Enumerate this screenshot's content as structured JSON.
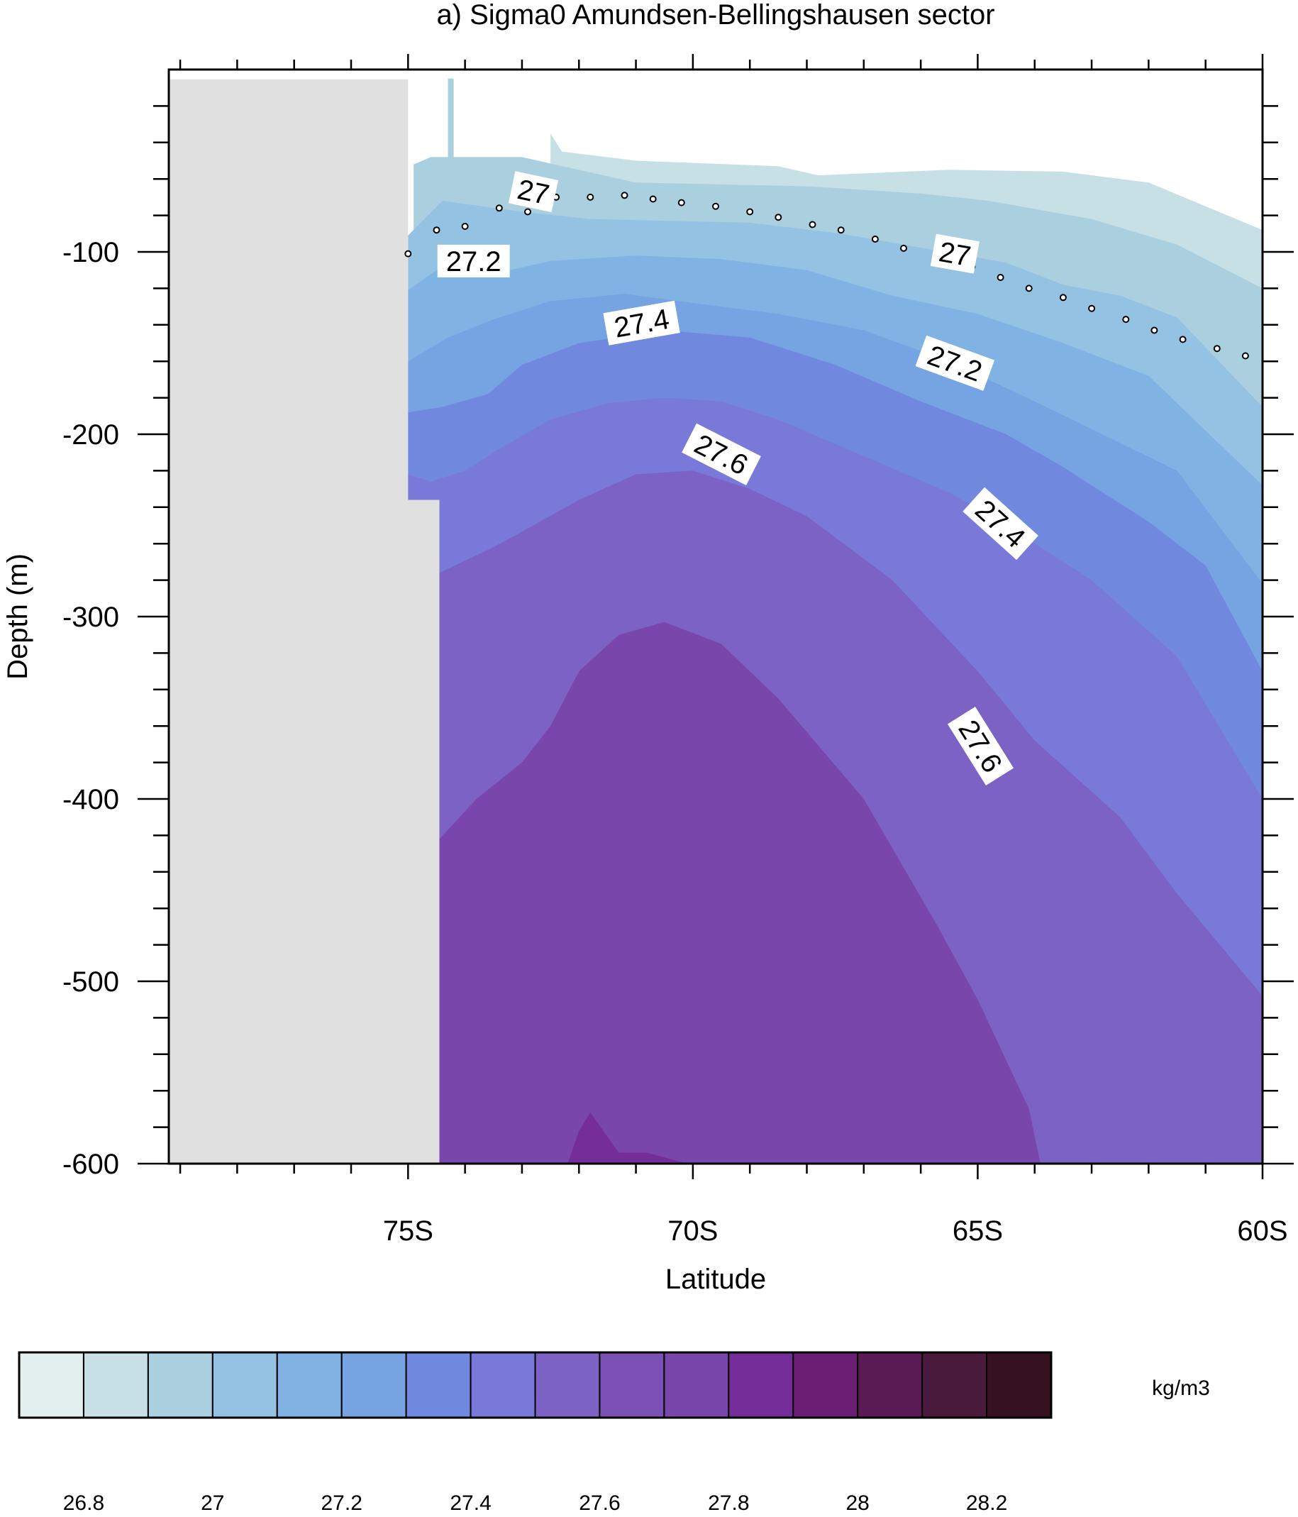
{
  "chart_data": {
    "type": "heatmap",
    "title": "a) Sigma0 Amundsen-Bellingshausen sector",
    "xlabel": "Latitude",
    "ylabel": "Depth (m)",
    "xlim": [
      -79.2,
      -60
    ],
    "ylim": [
      -600,
      0
    ],
    "x_ticks": [
      {
        "value": -75,
        "label": "75S"
      },
      {
        "value": -70,
        "label": "70S"
      },
      {
        "value": -65,
        "label": "65S"
      },
      {
        "value": -60,
        "label": "60S"
      }
    ],
    "y_ticks": [
      {
        "value": -100,
        "label": "-100"
      },
      {
        "value": -200,
        "label": "-200"
      },
      {
        "value": -300,
        "label": "-300"
      },
      {
        "value": -400,
        "label": "-400"
      },
      {
        "value": -500,
        "label": "-500"
      },
      {
        "value": -600,
        "label": "-600"
      }
    ],
    "fill_bands": [
      {
        "min": 26.9,
        "max": 27.0,
        "color": "#c7e0e6",
        "boundary": [
          [
            -72.5,
            -5
          ],
          [
            -72.5,
            -35
          ],
          [
            -72.3,
            -45
          ],
          [
            -71,
            -50
          ],
          [
            -68.5,
            -53
          ],
          [
            -67.8,
            -58
          ],
          [
            -65.5,
            -55
          ],
          [
            -63.5,
            -56
          ],
          [
            -62,
            -62
          ],
          [
            -60,
            -88
          ]
        ]
      },
      {
        "min": 27.0,
        "max": 27.1,
        "color": "#aad0e0",
        "boundary": [
          [
            -74.9,
            -5
          ],
          [
            -74.9,
            -52
          ],
          [
            -74.2,
            -52
          ],
          [
            -74.2,
            -5
          ],
          [
            -74.3,
            -5
          ]
        ]
      },
      {
        "min": 27.0,
        "max": 27.1,
        "color": "#aad0e0",
        "boundary": [
          [
            -74.9,
            -52
          ],
          [
            -74.6,
            -48
          ],
          [
            -73,
            -48
          ],
          [
            -71,
            -62
          ],
          [
            -68,
            -64
          ],
          [
            -66,
            -68
          ],
          [
            -64.8,
            -72
          ],
          [
            -63,
            -82
          ],
          [
            -61.5,
            -96
          ],
          [
            -60,
            -120
          ]
        ]
      },
      {
        "min": 27.1,
        "max": 27.2,
        "color": "#94c2e3",
        "boundary": [
          [
            -75,
            -91
          ],
          [
            -74.4,
            -72
          ],
          [
            -73,
            -78
          ],
          [
            -71.8,
            -82
          ],
          [
            -69,
            -84
          ],
          [
            -67.4,
            -90
          ],
          [
            -64.5,
            -106
          ],
          [
            -63.5,
            -118
          ],
          [
            -62.5,
            -124
          ],
          [
            -61.5,
            -136
          ],
          [
            -60,
            -185
          ]
        ]
      },
      {
        "min": 27.2,
        "max": 27.3,
        "color": "#80b3e3",
        "boundary": [
          [
            -75,
            -121
          ],
          [
            -74.5,
            -110
          ],
          [
            -73.5,
            -112
          ],
          [
            -72.5,
            -105
          ],
          [
            -71,
            -102
          ],
          [
            -69.5,
            -104
          ],
          [
            -68,
            -110
          ],
          [
            -66.5,
            -124
          ],
          [
            -65,
            -134
          ],
          [
            -63.5,
            -150
          ],
          [
            -62,
            -168
          ],
          [
            -60,
            -228
          ]
        ]
      },
      {
        "min": 27.3,
        "max": 27.4,
        "color": "#76a3e1",
        "boundary": [
          [
            -75,
            -160
          ],
          [
            -74.3,
            -147
          ],
          [
            -73.5,
            -137
          ],
          [
            -72.5,
            -127
          ],
          [
            -71.2,
            -123
          ],
          [
            -70,
            -128
          ],
          [
            -68.5,
            -134
          ],
          [
            -67,
            -143
          ],
          [
            -65.5,
            -160
          ],
          [
            -64,
            -182
          ],
          [
            -61.5,
            -220
          ],
          [
            -60,
            -282
          ]
        ]
      },
      {
        "min": 27.4,
        "max": 27.5,
        "color": "#7089de",
        "boundary": [
          [
            -75,
            -188
          ],
          [
            -74.4,
            -185
          ],
          [
            -73.6,
            -178
          ],
          [
            -73,
            -162
          ],
          [
            -72,
            -150
          ],
          [
            -70.5,
            -143
          ],
          [
            -69,
            -147
          ],
          [
            -67.5,
            -162
          ],
          [
            -66,
            -182
          ],
          [
            -64.5,
            -200
          ],
          [
            -63.5,
            -218
          ],
          [
            -62,
            -248
          ],
          [
            -61,
            -272
          ],
          [
            -60,
            -330
          ]
        ]
      },
      {
        "min": 27.5,
        "max": 27.6,
        "color": "#7879d8",
        "boundary": [
          [
            -75,
            -222
          ],
          [
            -74.6,
            -226
          ],
          [
            -74,
            -220
          ],
          [
            -73.4,
            -208
          ],
          [
            -72.5,
            -192
          ],
          [
            -71.5,
            -183
          ],
          [
            -70.5,
            -180
          ],
          [
            -69.5,
            -182
          ],
          [
            -68.5,
            -192
          ],
          [
            -67,
            -212
          ],
          [
            -65.5,
            -232
          ],
          [
            -64.5,
            -250
          ],
          [
            -63,
            -280
          ],
          [
            -61.5,
            -322
          ],
          [
            -60,
            -400
          ]
        ]
      },
      {
        "min": 27.6,
        "max": 27.7,
        "color": "#7b62c4",
        "boundary": [
          [
            -74.45,
            -276
          ],
          [
            -73.5,
            -262
          ],
          [
            -72.8,
            -250
          ],
          [
            -72,
            -236
          ],
          [
            -71,
            -222
          ],
          [
            -70,
            -220
          ],
          [
            -69,
            -230
          ],
          [
            -68,
            -245
          ],
          [
            -66.5,
            -280
          ],
          [
            -65,
            -330
          ],
          [
            -64,
            -368
          ],
          [
            -62.5,
            -410
          ],
          [
            -61.5,
            -452
          ],
          [
            -60,
            -508
          ]
        ]
      },
      {
        "min": 27.7,
        "max": 27.8,
        "color": "#7946ab",
        "boundary": [
          [
            -74.45,
            -422
          ],
          [
            -73.8,
            -400
          ],
          [
            -73,
            -380
          ],
          [
            -72.5,
            -360
          ],
          [
            -72,
            -330
          ],
          [
            -71.3,
            -310
          ],
          [
            -70.5,
            -303
          ],
          [
            -69.5,
            -315
          ],
          [
            -68.5,
            -345
          ],
          [
            -67,
            -400
          ],
          [
            -65.7,
            -470
          ],
          [
            -65,
            -510
          ],
          [
            -64.1,
            -570
          ],
          [
            -63.9,
            -600
          ]
        ]
      },
      {
        "min": 27.8,
        "max": 27.9,
        "color": "#752d9a",
        "boundary": [
          [
            -72.2,
            -600
          ],
          [
            -72,
            -582
          ],
          [
            -71.8,
            -572
          ],
          [
            -71.3,
            -594
          ],
          [
            -70.8,
            -594
          ],
          [
            -70.1,
            -600
          ]
        ]
      }
    ],
    "land_color": "#e0e0e0",
    "land_boundary": [
      [
        -79.2,
        -5
      ],
      [
        -75,
        -5
      ],
      [
        -75,
        -236
      ],
      [
        -74.45,
        -236
      ],
      [
        -74.45,
        -600
      ],
      [
        -79.2,
        -600
      ]
    ],
    "contour_lines": [
      {
        "level": 27,
        "style": "dotted",
        "points": [
          [
            -75,
            -101
          ],
          [
            -74.5,
            -88
          ],
          [
            -74,
            -86
          ],
          [
            -73.4,
            -76
          ],
          [
            -72.9,
            -78
          ],
          [
            -72.4,
            -70
          ],
          [
            -71.8,
            -70
          ],
          [
            -71.2,
            -69
          ],
          [
            -70.7,
            -71
          ],
          [
            -70.2,
            -73
          ],
          [
            -69.6,
            -75
          ],
          [
            -69,
            -78
          ],
          [
            -68.5,
            -81
          ],
          [
            -67.9,
            -85
          ],
          [
            -67.4,
            -88
          ],
          [
            -66.8,
            -93
          ],
          [
            -66.3,
            -98
          ],
          [
            -65.7,
            -103
          ],
          [
            -65.1,
            -108
          ],
          [
            -64.6,
            -114
          ],
          [
            -64.1,
            -120
          ],
          [
            -63.5,
            -125
          ],
          [
            -63,
            -131
          ],
          [
            -62.4,
            -137
          ],
          [
            -61.9,
            -143
          ],
          [
            -61.4,
            -148
          ],
          [
            -60.8,
            -153
          ],
          [
            -60.3,
            -157
          ],
          [
            -59.8,
            -160
          ]
        ]
      }
    ],
    "contour_labels": [
      {
        "text": "27",
        "x": -72.8,
        "y": -67,
        "angle": 12
      },
      {
        "text": "27.2",
        "x": -73.85,
        "y": -105,
        "angle": 0
      },
      {
        "text": "27.4",
        "x": -70.9,
        "y": -139,
        "angle": -10
      },
      {
        "text": "27",
        "x": -65.4,
        "y": -101,
        "angle": 10
      },
      {
        "text": "27.2",
        "x": -65.4,
        "y": -161,
        "angle": 20
      },
      {
        "text": "27.6",
        "x": -69.5,
        "y": -211,
        "angle": 27
      },
      {
        "text": "27.4",
        "x": -64.6,
        "y": -249,
        "angle": 42
      },
      {
        "text": "27.6",
        "x": -64.95,
        "y": -371,
        "angle": 58
      }
    ],
    "colorbar": {
      "units": "kg/m3",
      "colors": [
        "#e3efef",
        "#c7e0e6",
        "#aad0e0",
        "#94c2e3",
        "#80b3e3",
        "#76a3e1",
        "#7089de",
        "#7879d8",
        "#7b62c4",
        "#7b50b4",
        "#7946ab",
        "#752d9a",
        "#6a1f74",
        "#5a1a53",
        "#491a3c",
        "#36111f"
      ],
      "labels": [
        "26.8",
        "27",
        "27.2",
        "27.4",
        "27.6",
        "27.8",
        "28",
        "28.2"
      ]
    }
  }
}
